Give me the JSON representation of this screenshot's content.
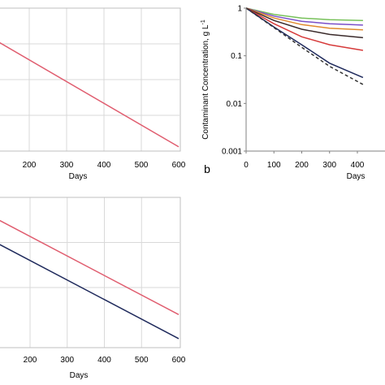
{
  "chart_data": [
    {
      "type": "line",
      "panel": "top-left",
      "xlabel": "Days",
      "ylabel": "",
      "xlim": [
        0,
        600
      ],
      "x_ticks_visible": [
        "200",
        "300",
        "400",
        "500",
        "600"
      ],
      "grid": true,
      "series": [
        {
          "color": "#e05d6f",
          "x": [
            100,
            600
          ],
          "y": [
            0.79,
            0.03
          ]
        }
      ]
    },
    {
      "type": "line",
      "panel": "top-right",
      "panel_label": "b",
      "xlabel": "Days",
      "ylabel": "Contaminant Concentration, g L",
      "ylabel_superscript": "-1",
      "log_scale_y": true,
      "ylim": [
        0.001,
        1
      ],
      "xlim": [
        0,
        420
      ],
      "y_ticks": [
        "1",
        "0.1",
        "0.01",
        "0.001"
      ],
      "x_ticks_visible": [
        "0",
        "100",
        "200",
        "300",
        "400"
      ],
      "grid": false,
      "series": [
        {
          "color": "#77c15a",
          "style": "solid",
          "x": [
            0,
            100,
            200,
            300,
            420
          ],
          "y": [
            1,
            0.74,
            0.62,
            0.57,
            0.55
          ]
        },
        {
          "color": "#7a4fc9",
          "style": "solid",
          "x": [
            0,
            100,
            200,
            300,
            420
          ],
          "y": [
            1,
            0.68,
            0.53,
            0.47,
            0.44
          ]
        },
        {
          "color": "#e08a2e",
          "style": "solid",
          "x": [
            0,
            100,
            200,
            300,
            420
          ],
          "y": [
            1,
            0.62,
            0.45,
            0.38,
            0.35
          ]
        },
        {
          "color": "#3a2a2a",
          "style": "solid",
          "x": [
            0,
            100,
            200,
            300,
            420
          ],
          "y": [
            1,
            0.55,
            0.36,
            0.28,
            0.24
          ]
        },
        {
          "color": "#d63a3a",
          "style": "solid",
          "x": [
            0,
            100,
            200,
            300,
            420
          ],
          "y": [
            1,
            0.47,
            0.25,
            0.17,
            0.13
          ]
        },
        {
          "color": "#1f2a5c",
          "style": "solid",
          "x": [
            0,
            100,
            200,
            300,
            420
          ],
          "y": [
            1,
            0.4,
            0.17,
            0.07,
            0.035
          ]
        },
        {
          "color": "#333333",
          "style": "dashed",
          "x": [
            0,
            100,
            200,
            300,
            420
          ],
          "y": [
            1,
            0.39,
            0.15,
            0.06,
            0.025
          ]
        }
      ]
    },
    {
      "type": "line",
      "panel": "bottom-left",
      "xlabel": "Days",
      "ylabel": "",
      "xlim": [
        0,
        600
      ],
      "x_ticks_visible": [
        "200",
        "300",
        "400",
        "500",
        "600"
      ],
      "grid": true,
      "series": [
        {
          "color": "#e05d6f",
          "x": [
            100,
            600
          ],
          "y": [
            0.87,
            0.22
          ]
        },
        {
          "color": "#1f2a5c",
          "x": [
            100,
            600
          ],
          "y": [
            0.71,
            0.06
          ]
        }
      ]
    }
  ]
}
